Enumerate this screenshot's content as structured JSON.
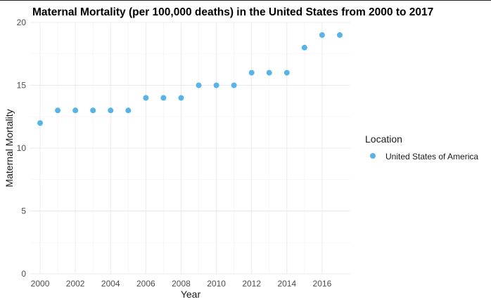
{
  "chart_data": {
    "type": "scatter",
    "title": "Maternal Mortality (per 100,000 deaths) in the United States from 2000 to 2017",
    "xlabel": "Year",
    "ylabel": "Maternal Mortality",
    "xlim": [
      1999.4,
      2017.6
    ],
    "ylim": [
      0,
      20
    ],
    "x_ticks": [
      2000,
      2002,
      2004,
      2006,
      2008,
      2010,
      2012,
      2014,
      2016
    ],
    "y_ticks": [
      0,
      5,
      10,
      15,
      20
    ],
    "grid": true,
    "legend": {
      "title": "Location",
      "position": "right"
    },
    "series": [
      {
        "name": "United States of America",
        "color": "#56b4e9",
        "x": [
          2000,
          2001,
          2002,
          2003,
          2004,
          2005,
          2006,
          2007,
          2008,
          2009,
          2010,
          2011,
          2012,
          2013,
          2014,
          2015,
          2016,
          2017
        ],
        "y": [
          12,
          13,
          13,
          13,
          13,
          13,
          14,
          14,
          14,
          15,
          15,
          15,
          16,
          16,
          16,
          18,
          19,
          19
        ]
      }
    ]
  }
}
